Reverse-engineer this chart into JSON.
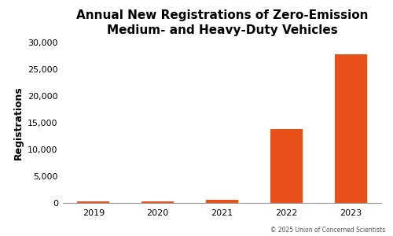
{
  "title": "Annual New Registrations of Zero-Emission\nMedium- and Heavy-Duty Vehicles",
  "xlabel": "",
  "ylabel": "Registrations",
  "categories": [
    "2019",
    "2020",
    "2021",
    "2022",
    "2023"
  ],
  "values": [
    300,
    280,
    650,
    13800,
    27800
  ],
  "bar_color": "#E8501A",
  "ylim": [
    0,
    30000
  ],
  "yticks": [
    0,
    5000,
    10000,
    15000,
    20000,
    25000,
    30000
  ],
  "background_color": "#FFFFFF",
  "title_fontsize": 11,
  "ylabel_fontsize": 9,
  "tick_fontsize": 8,
  "caption": "© 2025 Union of Concerned Scientists",
  "caption_fontsize": 5.5,
  "bar_width": 0.5
}
